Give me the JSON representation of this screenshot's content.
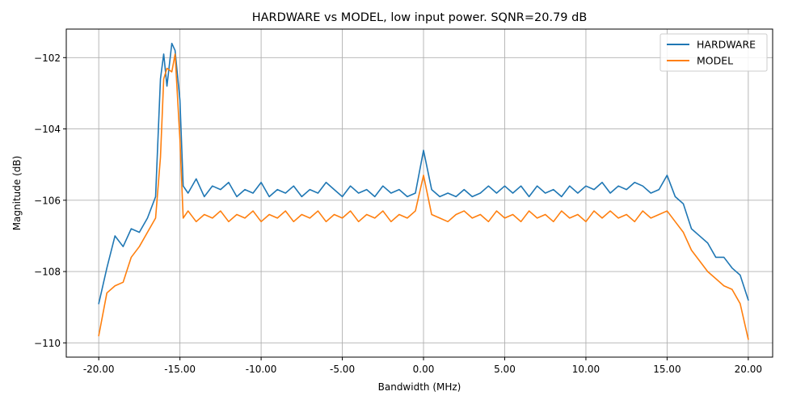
{
  "chart_data": {
    "type": "line",
    "title": "HARDWARE vs MODEL, low input power. SQNR=20.79 dB",
    "xlabel": "Bandwidth (MHz)",
    "ylabel": "Magnitude (dB)",
    "xlim": [
      -22,
      21.5
    ],
    "ylim": [
      -110.4,
      -101.2
    ],
    "xticks": [
      -20,
      -15,
      -10,
      -5,
      0,
      5,
      10,
      15,
      20
    ],
    "xtick_labels": [
      "-20.00",
      "-15.00",
      "-10.00",
      "-5.00",
      "0.00",
      "5.00",
      "10.00",
      "15.00",
      "20.00"
    ],
    "yticks": [
      -110,
      -108,
      -106,
      -104,
      -102
    ],
    "ytick_labels": [
      "−110",
      "−108",
      "−106",
      "−104",
      "−102"
    ],
    "grid": true,
    "legend_position": "top-right",
    "colors": {
      "HARDWARE": "#1f77b4",
      "MODEL": "#ff7f0e",
      "grid": "#b0b0b0",
      "frame": "#000000"
    },
    "series": [
      {
        "name": "HARDWARE",
        "x": [
          -20.0,
          -19.5,
          -19.0,
          -18.5,
          -18.0,
          -17.5,
          -17.0,
          -16.5,
          -16.2,
          -16.0,
          -15.8,
          -15.5,
          -15.3,
          -15.0,
          -14.8,
          -14.5,
          -14.0,
          -13.5,
          -13.0,
          -12.5,
          -12.0,
          -11.5,
          -11.0,
          -10.5,
          -10.0,
          -9.5,
          -9.0,
          -8.5,
          -8.0,
          -7.5,
          -7.0,
          -6.5,
          -6.0,
          -5.5,
          -5.0,
          -4.5,
          -4.0,
          -3.5,
          -3.0,
          -2.5,
          -2.0,
          -1.5,
          -1.0,
          -0.5,
          0.0,
          0.5,
          1.0,
          1.5,
          2.0,
          2.5,
          3.0,
          3.5,
          4.0,
          4.5,
          5.0,
          5.5,
          6.0,
          6.5,
          7.0,
          7.5,
          8.0,
          8.5,
          9.0,
          9.5,
          10.0,
          10.5,
          11.0,
          11.5,
          12.0,
          12.5,
          13.0,
          13.5,
          14.0,
          14.5,
          15.0,
          15.5,
          16.0,
          16.5,
          17.0,
          17.5,
          18.0,
          18.5,
          19.0,
          19.5,
          20.0
        ],
        "y": [
          -108.9,
          -107.9,
          -107.0,
          -107.3,
          -106.8,
          -106.9,
          -106.5,
          -105.9,
          -102.6,
          -101.9,
          -102.8,
          -101.6,
          -101.8,
          -103.2,
          -105.6,
          -105.8,
          -105.4,
          -105.9,
          -105.6,
          -105.7,
          -105.5,
          -105.9,
          -105.7,
          -105.8,
          -105.5,
          -105.9,
          -105.7,
          -105.8,
          -105.6,
          -105.9,
          -105.7,
          -105.8,
          -105.5,
          -105.7,
          -105.9,
          -105.6,
          -105.8,
          -105.7,
          -105.9,
          -105.6,
          -105.8,
          -105.7,
          -105.9,
          -105.8,
          -104.6,
          -105.7,
          -105.9,
          -105.8,
          -105.9,
          -105.7,
          -105.9,
          -105.8,
          -105.6,
          -105.8,
          -105.6,
          -105.8,
          -105.6,
          -105.9,
          -105.6,
          -105.8,
          -105.7,
          -105.9,
          -105.6,
          -105.8,
          -105.6,
          -105.7,
          -105.5,
          -105.8,
          -105.6,
          -105.7,
          -105.5,
          -105.6,
          -105.8,
          -105.7,
          -105.3,
          -105.9,
          -106.1,
          -106.8,
          -107.0,
          -107.2,
          -107.6,
          -107.6,
          -107.9,
          -108.1,
          -108.8
        ]
      },
      {
        "name": "MODEL",
        "x": [
          -20.0,
          -19.5,
          -19.0,
          -18.5,
          -18.0,
          -17.5,
          -17.0,
          -16.5,
          -16.2,
          -16.0,
          -15.8,
          -15.5,
          -15.3,
          -15.0,
          -14.8,
          -14.5,
          -14.0,
          -13.5,
          -13.0,
          -12.5,
          -12.0,
          -11.5,
          -11.0,
          -10.5,
          -10.0,
          -9.5,
          -9.0,
          -8.5,
          -8.0,
          -7.5,
          -7.0,
          -6.5,
          -6.0,
          -5.5,
          -5.0,
          -4.5,
          -4.0,
          -3.5,
          -3.0,
          -2.5,
          -2.0,
          -1.5,
          -1.0,
          -0.5,
          0.0,
          0.5,
          1.0,
          1.5,
          2.0,
          2.5,
          3.0,
          3.5,
          4.0,
          4.5,
          5.0,
          5.5,
          6.0,
          6.5,
          7.0,
          7.5,
          8.0,
          8.5,
          9.0,
          9.5,
          10.0,
          10.5,
          11.0,
          11.5,
          12.0,
          12.5,
          13.0,
          13.5,
          14.0,
          14.5,
          15.0,
          15.5,
          16.0,
          16.5,
          17.0,
          17.5,
          18.0,
          18.5,
          19.0,
          19.5,
          20.0
        ],
        "y": [
          -109.8,
          -108.6,
          -108.4,
          -108.3,
          -107.6,
          -107.3,
          -106.9,
          -106.5,
          -104.8,
          -102.6,
          -102.3,
          -102.4,
          -101.9,
          -104.3,
          -106.5,
          -106.3,
          -106.6,
          -106.4,
          -106.5,
          -106.3,
          -106.6,
          -106.4,
          -106.5,
          -106.3,
          -106.6,
          -106.4,
          -106.5,
          -106.3,
          -106.6,
          -106.4,
          -106.5,
          -106.3,
          -106.6,
          -106.4,
          -106.5,
          -106.3,
          -106.6,
          -106.4,
          -106.5,
          -106.3,
          -106.6,
          -106.4,
          -106.5,
          -106.3,
          -105.3,
          -106.4,
          -106.5,
          -106.6,
          -106.4,
          -106.3,
          -106.5,
          -106.4,
          -106.6,
          -106.3,
          -106.5,
          -106.4,
          -106.6,
          -106.3,
          -106.5,
          -106.4,
          -106.6,
          -106.3,
          -106.5,
          -106.4,
          -106.6,
          -106.3,
          -106.5,
          -106.3,
          -106.5,
          -106.4,
          -106.6,
          -106.3,
          -106.5,
          -106.4,
          -106.3,
          -106.6,
          -106.9,
          -107.4,
          -107.7,
          -108.0,
          -108.2,
          -108.4,
          -108.5,
          -108.9,
          -109.9
        ]
      }
    ]
  }
}
